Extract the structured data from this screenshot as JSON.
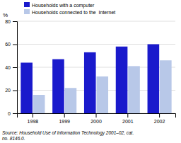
{
  "chart_data": {
    "type": "bar",
    "ylabel": "%",
    "categories": [
      "1998",
      "1999",
      "2000",
      "2001",
      "2002"
    ],
    "series": [
      {
        "name": "Households with a computer",
        "color": "#1a1acc",
        "values": [
          44,
          47,
          53,
          58,
          60
        ]
      },
      {
        "name": "Households connected to the  Internet",
        "color": "#b8c8e8",
        "values": [
          16,
          22,
          32,
          41,
          46
        ]
      }
    ],
    "ylim": [
      0,
      80
    ],
    "yticks": [
      0,
      20,
      40,
      60,
      80
    ],
    "grid": true,
    "legend": "upper left",
    "annotations": [
      "Source: Household Use of Information Technology 2001–02, cat.\nno. 8146.0."
    ]
  }
}
